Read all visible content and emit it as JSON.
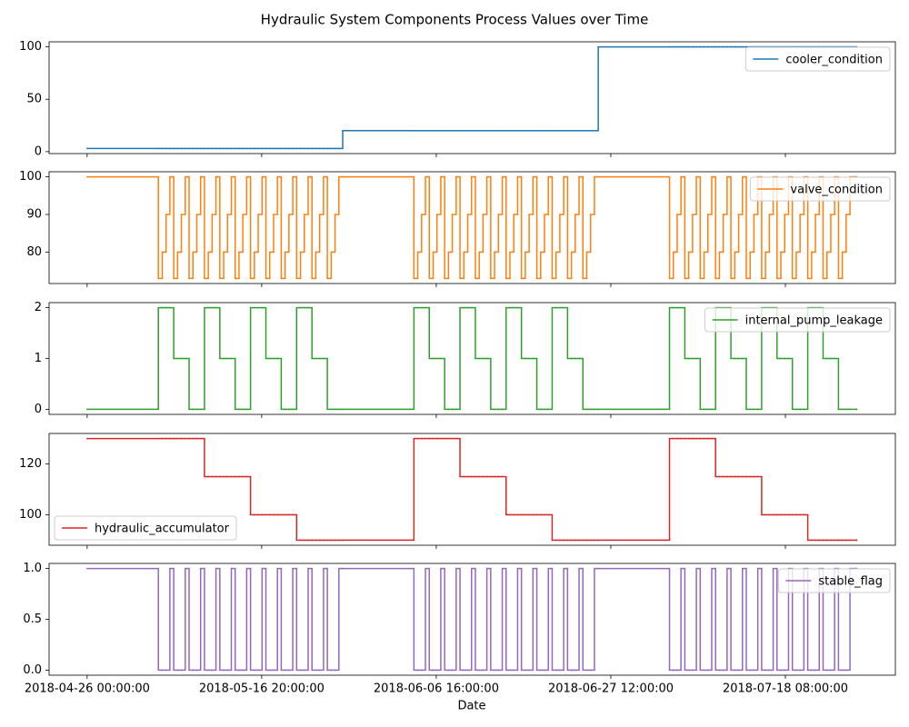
{
  "chart_data": {
    "type": "step",
    "title": "Hydraulic System Components Process Values over Time",
    "xlabel": "Date",
    "xlim": [
      "2018-04-21 11:00:00",
      "2018-07-31 11:00:00"
    ],
    "xticks": [
      "2018-04-26 00:00:00",
      "2018-05-16 20:00:00",
      "2018-06-06 16:00:00",
      "2018-06-27 12:00:00",
      "2018-07-18 08:00:00"
    ],
    "x": [
      "2018-04-26 00:00:00",
      "2018-05-04 12:00:00",
      "2018-05-04 23:00:00",
      "2018-05-05 10:00:00",
      "2018-05-05 21:00:00",
      "2018-05-06 08:00:00",
      "2018-05-06 19:00:00",
      "2018-05-07 06:00:00",
      "2018-05-07 17:00:00",
      "2018-05-08 04:00:00",
      "2018-05-08 15:00:00",
      "2018-05-09 02:00:00",
      "2018-05-09 13:00:00",
      "2018-05-10 00:00:00",
      "2018-05-10 11:00:00",
      "2018-05-10 22:00:00",
      "2018-05-11 09:00:00",
      "2018-05-11 20:00:00",
      "2018-05-12 07:00:00",
      "2018-05-12 18:00:00",
      "2018-05-13 05:00:00",
      "2018-05-13 16:00:00",
      "2018-05-14 03:00:00",
      "2018-05-14 14:00:00",
      "2018-05-15 01:00:00",
      "2018-05-15 12:00:00",
      "2018-05-15 23:00:00",
      "2018-05-16 10:00:00",
      "2018-05-16 21:00:00",
      "2018-05-17 08:00:00",
      "2018-05-17 19:00:00",
      "2018-05-18 06:00:00",
      "2018-05-18 17:00:00",
      "2018-05-19 04:00:00",
      "2018-05-19 15:00:00",
      "2018-05-20 02:00:00",
      "2018-05-20 13:00:00",
      "2018-05-21 00:00:00",
      "2018-05-21 11:00:00",
      "2018-05-21 22:00:00",
      "2018-05-22 09:00:00",
      "2018-05-22 20:00:00",
      "2018-05-23 07:00:00",
      "2018-05-23 18:00:00",
      "2018-05-24 05:00:00",
      "2018-05-24 16:00:00",
      "2018-05-25 03:00:00",
      "2018-05-25 14:00:00",
      "2018-05-26 01:00:00",
      "2018-05-26 12:00:00",
      "2018-06-04 00:00:00",
      "2018-06-04 11:00:00",
      "2018-06-04 22:00:00",
      "2018-06-05 09:00:00",
      "2018-06-05 20:00:00",
      "2018-06-06 07:00:00",
      "2018-06-06 18:00:00",
      "2018-06-07 05:00:00",
      "2018-06-07 16:00:00",
      "2018-06-08 03:00:00",
      "2018-06-08 14:00:00",
      "2018-06-09 01:00:00",
      "2018-06-09 12:00:00",
      "2018-06-09 23:00:00",
      "2018-06-10 10:00:00",
      "2018-06-10 21:00:00",
      "2018-06-11 08:00:00",
      "2018-06-11 19:00:00",
      "2018-06-12 06:00:00",
      "2018-06-12 17:00:00",
      "2018-06-13 04:00:00",
      "2018-06-13 15:00:00",
      "2018-06-14 02:00:00",
      "2018-06-14 13:00:00",
      "2018-06-15 00:00:00",
      "2018-06-15 11:00:00",
      "2018-06-15 22:00:00",
      "2018-06-16 09:00:00",
      "2018-06-16 20:00:00",
      "2018-06-17 07:00:00",
      "2018-06-17 18:00:00",
      "2018-06-18 05:00:00",
      "2018-06-18 16:00:00",
      "2018-06-19 03:00:00",
      "2018-06-19 14:00:00",
      "2018-06-20 01:00:00",
      "2018-06-20 12:00:00",
      "2018-06-20 23:00:00",
      "2018-06-21 10:00:00",
      "2018-06-21 21:00:00",
      "2018-06-22 08:00:00",
      "2018-06-22 19:00:00",
      "2018-06-23 06:00:00",
      "2018-06-23 17:00:00",
      "2018-06-24 04:00:00",
      "2018-06-24 15:00:00",
      "2018-06-25 02:00:00",
      "2018-06-25 13:00:00",
      "2018-06-26 00:00:00",
      "2018-07-04 12:00:00",
      "2018-07-04 23:00:00",
      "2018-07-05 10:00:00",
      "2018-07-05 21:00:00",
      "2018-07-06 08:00:00",
      "2018-07-06 19:00:00",
      "2018-07-07 06:00:00",
      "2018-07-07 17:00:00",
      "2018-07-08 04:00:00",
      "2018-07-08 15:00:00",
      "2018-07-09 02:00:00",
      "2018-07-09 13:00:00",
      "2018-07-10 00:00:00",
      "2018-07-10 11:00:00",
      "2018-07-10 22:00:00",
      "2018-07-11 09:00:00",
      "2018-07-11 20:00:00",
      "2018-07-12 07:00:00",
      "2018-07-12 18:00:00",
      "2018-07-13 05:00:00",
      "2018-07-13 16:00:00",
      "2018-07-14 03:00:00",
      "2018-07-14 14:00:00",
      "2018-07-15 01:00:00",
      "2018-07-15 12:00:00",
      "2018-07-15 23:00:00",
      "2018-07-16 10:00:00",
      "2018-07-16 21:00:00",
      "2018-07-17 08:00:00",
      "2018-07-17 19:00:00",
      "2018-07-18 06:00:00",
      "2018-07-18 17:00:00",
      "2018-07-19 04:00:00",
      "2018-07-19 15:00:00",
      "2018-07-20 02:00:00",
      "2018-07-20 13:00:00",
      "2018-07-21 00:00:00",
      "2018-07-21 11:00:00",
      "2018-07-21 22:00:00",
      "2018-07-22 09:00:00",
      "2018-07-22 20:00:00",
      "2018-07-23 07:00:00",
      "2018-07-23 18:00:00",
      "2018-07-24 05:00:00",
      "2018-07-24 16:00:00",
      "2018-07-25 03:00:00",
      "2018-07-25 14:00:00",
      "2018-07-26 01:00:00",
      "2018-07-26 20:00:00"
    ],
    "series": [
      {
        "name": "cooler_condition",
        "color": "#1f77b4",
        "ylim": [
          -1.85,
          104.85
        ],
        "yticks": [
          0,
          50,
          100
        ],
        "legend": "upper right",
        "values": [
          3,
          3,
          3,
          3,
          3,
          3,
          3,
          3,
          3,
          3,
          3,
          3,
          3,
          3,
          3,
          3,
          3,
          3,
          3,
          3,
          3,
          3,
          3,
          3,
          3,
          3,
          3,
          3,
          3,
          3,
          3,
          3,
          3,
          3,
          3,
          3,
          3,
          3,
          3,
          3,
          3,
          3,
          3,
          3,
          3,
          3,
          3,
          3,
          3,
          20,
          20,
          20,
          20,
          20,
          20,
          20,
          20,
          20,
          20,
          20,
          20,
          20,
          20,
          20,
          20,
          20,
          20,
          20,
          20,
          20,
          20,
          20,
          20,
          20,
          20,
          20,
          20,
          20,
          20,
          20,
          20,
          20,
          20,
          20,
          20,
          20,
          20,
          20,
          20,
          20,
          20,
          20,
          20,
          20,
          20,
          20,
          20,
          20,
          100,
          100,
          100,
          100,
          100,
          100,
          100,
          100,
          100,
          100,
          100,
          100,
          100,
          100,
          100,
          100,
          100,
          100,
          100,
          100,
          100,
          100,
          100,
          100,
          100,
          100,
          100,
          100,
          100,
          100,
          100,
          100,
          100,
          100,
          100,
          100,
          100,
          100,
          100,
          100,
          100,
          100,
          100,
          100,
          100,
          100,
          100,
          100,
          100,
          100
        ]
      },
      {
        "name": "valve_condition",
        "color": "#ff7f0e",
        "ylim": [
          71.65,
          101.35
        ],
        "yticks": [
          80,
          90,
          100
        ],
        "legend": "upper right",
        "values": [
          100,
          73,
          80,
          90,
          100,
          73,
          80,
          90,
          100,
          73,
          80,
          90,
          100,
          73,
          80,
          90,
          100,
          73,
          80,
          90,
          100,
          73,
          80,
          90,
          100,
          73,
          80,
          90,
          100,
          73,
          80,
          90,
          100,
          73,
          80,
          90,
          100,
          73,
          80,
          90,
          100,
          73,
          80,
          90,
          100,
          73,
          80,
          90,
          100,
          100,
          73,
          80,
          90,
          100,
          73,
          80,
          90,
          100,
          73,
          80,
          90,
          100,
          73,
          80,
          90,
          100,
          73,
          80,
          90,
          100,
          73,
          80,
          90,
          100,
          73,
          80,
          90,
          100,
          73,
          80,
          90,
          100,
          73,
          80,
          90,
          100,
          73,
          80,
          90,
          100,
          73,
          80,
          90,
          100,
          73,
          80,
          90,
          100,
          100,
          73,
          80,
          90,
          100,
          73,
          80,
          90,
          100,
          73,
          80,
          90,
          100,
          73,
          80,
          90,
          100,
          73,
          80,
          90,
          100,
          73,
          80,
          90,
          100,
          73,
          80,
          90,
          100,
          73,
          80,
          90,
          100,
          73,
          80,
          90,
          100,
          73,
          80,
          90,
          100,
          73,
          80,
          90,
          100,
          73,
          80,
          90,
          100,
          100
        ]
      },
      {
        "name": "internal_pump_leakage",
        "color": "#2ca02c",
        "ylim": [
          -0.1,
          2.1
        ],
        "yticks": [
          0,
          1,
          2
        ],
        "legend": "upper right",
        "values": [
          0,
          2,
          2,
          2,
          2,
          1,
          1,
          1,
          1,
          0,
          0,
          0,
          0,
          2,
          2,
          2,
          2,
          1,
          1,
          1,
          1,
          0,
          0,
          0,
          0,
          2,
          2,
          2,
          2,
          1,
          1,
          1,
          1,
          0,
          0,
          0,
          0,
          2,
          2,
          2,
          2,
          1,
          1,
          1,
          1,
          0,
          0,
          0,
          0,
          0,
          2,
          2,
          2,
          2,
          1,
          1,
          1,
          1,
          0,
          0,
          0,
          0,
          2,
          2,
          2,
          2,
          1,
          1,
          1,
          1,
          0,
          0,
          0,
          0,
          2,
          2,
          2,
          2,
          1,
          1,
          1,
          1,
          0,
          0,
          0,
          0,
          2,
          2,
          2,
          2,
          1,
          1,
          1,
          1,
          0,
          0,
          0,
          0,
          0,
          2,
          2,
          2,
          2,
          1,
          1,
          1,
          1,
          0,
          0,
          0,
          0,
          2,
          2,
          2,
          2,
          1,
          1,
          1,
          1,
          0,
          0,
          0,
          0,
          2,
          2,
          2,
          2,
          1,
          1,
          1,
          1,
          0,
          0,
          0,
          0,
          2,
          2,
          2,
          2,
          1,
          1,
          1,
          1,
          0,
          0,
          0,
          0,
          0
        ]
      },
      {
        "name": "hydraulic_accumulator",
        "color": "#d62728",
        "ylim": [
          88,
          132
        ],
        "yticks": [
          100,
          120
        ],
        "legend": "lower left",
        "values": [
          130,
          130,
          130,
          130,
          130,
          130,
          130,
          130,
          130,
          130,
          130,
          130,
          130,
          115,
          115,
          115,
          115,
          115,
          115,
          115,
          115,
          115,
          115,
          115,
          115,
          100,
          100,
          100,
          100,
          100,
          100,
          100,
          100,
          100,
          100,
          100,
          100,
          90,
          90,
          90,
          90,
          90,
          90,
          90,
          90,
          90,
          90,
          90,
          90,
          90,
          130,
          130,
          130,
          130,
          130,
          130,
          130,
          130,
          130,
          130,
          130,
          130,
          115,
          115,
          115,
          115,
          115,
          115,
          115,
          115,
          115,
          115,
          115,
          115,
          100,
          100,
          100,
          100,
          100,
          100,
          100,
          100,
          100,
          100,
          100,
          100,
          90,
          90,
          90,
          90,
          90,
          90,
          90,
          90,
          90,
          90,
          90,
          90,
          90,
          130,
          130,
          130,
          130,
          130,
          130,
          130,
          130,
          130,
          130,
          130,
          130,
          115,
          115,
          115,
          115,
          115,
          115,
          115,
          115,
          115,
          115,
          115,
          115,
          100,
          100,
          100,
          100,
          100,
          100,
          100,
          100,
          100,
          100,
          100,
          100,
          90,
          90,
          90,
          90,
          90,
          90,
          90,
          90,
          90,
          90,
          90,
          90,
          90
        ]
      },
      {
        "name": "stable_flag",
        "color": "#9467bd",
        "ylim": [
          -0.05,
          1.05
        ],
        "yticks": [
          {
            "value": 0,
            "label": "0.0"
          },
          0.5,
          {
            "value": 1,
            "label": "1.0"
          }
        ],
        "legend": "upper right",
        "values": [
          1,
          0,
          0,
          0,
          1,
          0,
          0,
          0,
          1,
          0,
          0,
          0,
          1,
          0,
          0,
          0,
          1,
          0,
          0,
          0,
          1,
          0,
          0,
          0,
          1,
          0,
          0,
          0,
          1,
          0,
          0,
          0,
          1,
          0,
          0,
          0,
          1,
          0,
          0,
          0,
          1,
          0,
          0,
          0,
          1,
          0,
          0,
          0,
          1,
          1,
          0,
          0,
          0,
          1,
          0,
          0,
          0,
          1,
          0,
          0,
          0,
          1,
          0,
          0,
          0,
          1,
          0,
          0,
          0,
          1,
          0,
          0,
          0,
          1,
          0,
          0,
          0,
          1,
          0,
          0,
          0,
          1,
          0,
          0,
          0,
          1,
          0,
          0,
          0,
          1,
          0,
          0,
          0,
          1,
          0,
          0,
          0,
          1,
          1,
          0,
          0,
          0,
          1,
          0,
          0,
          0,
          1,
          0,
          0,
          0,
          1,
          0,
          0,
          0,
          1,
          0,
          0,
          0,
          1,
          0,
          0,
          0,
          1,
          0,
          0,
          0,
          1,
          0,
          0,
          0,
          1,
          0,
          0,
          0,
          1,
          0,
          0,
          0,
          1,
          0,
          0,
          0,
          1,
          0,
          0,
          0,
          1,
          1
        ]
      }
    ]
  }
}
